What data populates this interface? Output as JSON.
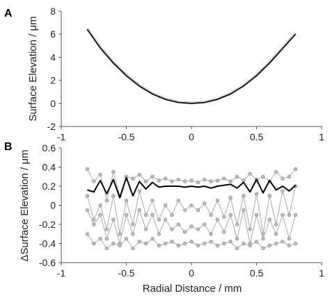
{
  "chart_data": [
    {
      "panel_label": "A",
      "type": "line",
      "ylabel": "Surface Elevation / μm",
      "xlim": [
        -1,
        1
      ],
      "ylim": [
        -2,
        8
      ],
      "xticks": [
        "-1",
        "-0.5",
        "0",
        "0.5",
        "1"
      ],
      "yticks": [
        "-2",
        "0",
        "2",
        "4",
        "6",
        "8"
      ],
      "grid": false,
      "legend": "none",
      "x": [
        -0.8,
        -0.7,
        -0.6,
        -0.5,
        -0.4,
        -0.3,
        -0.2,
        -0.1,
        0,
        0.1,
        0.2,
        0.3,
        0.4,
        0.5,
        0.6,
        0.7,
        0.8
      ],
      "series": [
        {
          "color": "#c8c8c8",
          "values": [
            6.5,
            4.85,
            3.55,
            2.45,
            1.55,
            0.85,
            0.38,
            0.1,
            0.03,
            0.1,
            0.38,
            0.85,
            1.55,
            2.45,
            3.55,
            4.8,
            6.1
          ]
        },
        {
          "color": "#000000",
          "values": [
            6.4,
            4.8,
            3.5,
            2.4,
            1.5,
            0.82,
            0.35,
            0.08,
            0.0,
            0.08,
            0.35,
            0.82,
            1.5,
            2.4,
            3.5,
            4.75,
            6.0
          ]
        }
      ]
    },
    {
      "panel_label": "B",
      "type": "line",
      "xlabel": "Radial Distance / mm",
      "ylabel": "ΔSurface Elevation / μm",
      "xlim": [
        -1,
        1
      ],
      "ylim": [
        -0.6,
        0.6
      ],
      "xticks": [
        "-1",
        "-0.5",
        "0",
        "0.5",
        "1"
      ],
      "yticks": [
        "-0.6",
        "-0.4",
        "-0.2",
        "0",
        "0.2",
        "0.4",
        "0.6"
      ],
      "grid": false,
      "legend": "none",
      "x": [
        -0.8,
        -0.75,
        -0.7,
        -0.65,
        -0.6,
        -0.55,
        -0.5,
        -0.45,
        -0.4,
        -0.35,
        -0.3,
        -0.25,
        -0.2,
        -0.15,
        -0.1,
        -0.05,
        0,
        0.05,
        0.1,
        0.15,
        0.2,
        0.25,
        0.3,
        0.35,
        0.4,
        0.45,
        0.5,
        0.55,
        0.6,
        0.65,
        0.7,
        0.75,
        0.8
      ],
      "series": [
        {
          "color": "#000000",
          "values": [
            0.16,
            0.14,
            0.26,
            0.12,
            0.27,
            0.08,
            0.29,
            0.1,
            0.25,
            0.17,
            0.24,
            0.19,
            0.2,
            0.2,
            0.2,
            0.19,
            0.2,
            0.19,
            0.2,
            0.18,
            0.2,
            0.21,
            0.22,
            0.18,
            0.24,
            0.14,
            0.27,
            0.13,
            0.26,
            0.16,
            0.2,
            0.15,
            0.21
          ]
        },
        {
          "color": "#aaaaaa",
          "values": [
            0.38,
            0.25,
            0.32,
            0.05,
            0.35,
            0.1,
            0.3,
            0.28,
            0.32,
            0.25,
            0.3,
            0.26,
            0.28,
            0.25,
            0.27,
            0.25,
            0.26,
            0.24,
            0.27,
            0.25,
            0.26,
            0.28,
            0.25,
            0.3,
            0.26,
            0.33,
            0.27,
            0.3,
            0.25,
            0.35,
            0.28,
            0.3,
            0.38
          ]
        },
        {
          "color": "#aaaaaa",
          "values": [
            0.1,
            -0.15,
            0.0,
            -0.25,
            0.1,
            -0.3,
            0.05,
            -0.2,
            0.15,
            -0.1,
            0.05,
            -0.15,
            0.0,
            -0.1,
            0.05,
            -0.05,
            0.0,
            -0.05,
            0.02,
            -0.1,
            0.05,
            -0.12,
            0.08,
            -0.2,
            0.1,
            -0.25,
            0.12,
            -0.3,
            0.1,
            -0.2,
            0.15,
            -0.1,
            0.2
          ]
        },
        {
          "color": "#aaaaaa",
          "values": [
            -0.05,
            -0.2,
            -0.1,
            -0.35,
            -0.15,
            -0.4,
            -0.1,
            -0.3,
            -0.05,
            -0.25,
            -0.1,
            -0.3,
            -0.15,
            -0.25,
            -0.2,
            -0.28,
            -0.22,
            -0.25,
            -0.2,
            -0.3,
            -0.15,
            -0.28,
            -0.1,
            -0.35,
            -0.05,
            -0.4,
            -0.1,
            -0.35,
            -0.15,
            -0.3,
            -0.1,
            -0.35,
            -0.1
          ]
        },
        {
          "color": "#aaaaaa",
          "values": [
            -0.3,
            -0.4,
            -0.35,
            -0.45,
            -0.4,
            -0.42,
            -0.35,
            -0.45,
            -0.38,
            -0.4,
            -0.35,
            -0.42,
            -0.4,
            -0.38,
            -0.42,
            -0.4,
            -0.38,
            -0.42,
            -0.4,
            -0.38,
            -0.42,
            -0.4,
            -0.38,
            -0.45,
            -0.4,
            -0.42,
            -0.38,
            -0.45,
            -0.42,
            -0.4,
            -0.38,
            -0.42,
            -0.4
          ]
        }
      ]
    }
  ]
}
